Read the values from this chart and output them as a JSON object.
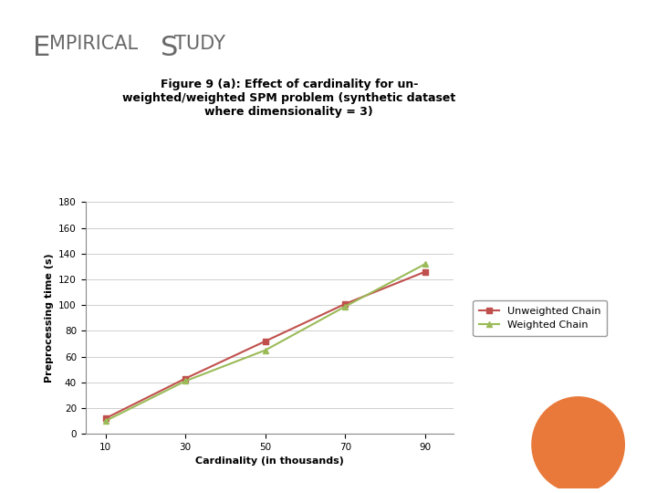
{
  "title_line1": "Figure 9 (a): Effect of cardinality for un-",
  "title_line2": "weighted/weighted SPM problem (synthetic dataset",
  "title_line3": "where dimensionality = 3)",
  "xlabel": "Cardinality (in thousands)",
  "ylabel": "Preprocessing time (s)",
  "x": [
    10,
    30,
    50,
    70,
    90
  ],
  "unweighted": [
    12,
    43,
    72,
    101,
    126
  ],
  "weighted": [
    10,
    41,
    65,
    99,
    132
  ],
  "unweighted_color": "#c0504d",
  "weighted_color": "#9bbb59",
  "ylim": [
    0,
    180
  ],
  "yticks": [
    0,
    20,
    40,
    60,
    80,
    100,
    120,
    140,
    160,
    180
  ],
  "xticks": [
    10,
    30,
    50,
    70,
    90
  ],
  "legend_unweighted": "Unweighted Chain",
  "legend_weighted": "Weighted Chain",
  "plot_bg": "#ffffff",
  "slide_bg": "#ffffff",
  "border_color": "#f0c8b8",
  "slide_title_big": "E",
  "slide_title_rest": "MPIRICAL ",
  "slide_title_big2": "S",
  "slide_title_rest2": "TUDY",
  "title_color": "#696969",
  "marker_size": 5,
  "linewidth": 1.5,
  "orange_circle_color": "#e8793a"
}
